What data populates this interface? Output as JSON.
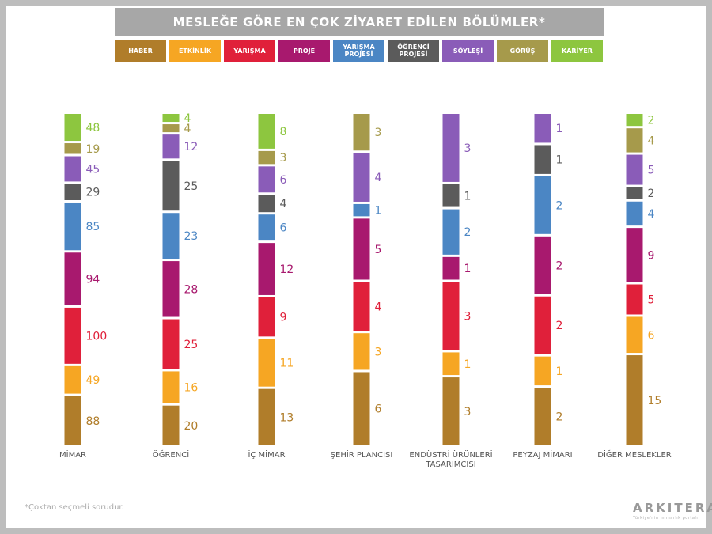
{
  "title": "MESLEĞE GÖRE EN ÇOK ZİYARET EDİLEN BÖLÜMLER*",
  "footnote": "*Çoktan seçmeli sorudur.",
  "logo": {
    "word": "ARKITERA",
    "tagline": "Türkiye'nin mimarlık portalı"
  },
  "colors": {
    "frame": "#bdbdbd",
    "title_bg": "#a7a7a7"
  },
  "chart_data": {
    "type": "bar",
    "stacked": true,
    "categories": [
      "MİMAR",
      "ÖĞRENCİ",
      "İÇ MİMAR",
      "ŞEHİR PLANCISI",
      "ENDÜSTRİ ÜRÜNLERİ\nTASARIMCISI",
      "PEYZAJ MİMARI",
      "DİĞER MESLEKLER"
    ],
    "series": [
      {
        "name": "HABER",
        "color": "#b07d2a",
        "values": [
          88,
          20,
          13,
          6,
          3,
          2,
          15
        ]
      },
      {
        "name": "ETKİNLİK",
        "color": "#f6a623",
        "values": [
          49,
          16,
          11,
          3,
          1,
          1,
          6
        ]
      },
      {
        "name": "YARIŞMA",
        "color": "#e0203a",
        "values": [
          100,
          25,
          9,
          4,
          3,
          2,
          5
        ]
      },
      {
        "name": "PROJE",
        "color": "#a8196e",
        "values": [
          94,
          28,
          12,
          5,
          1,
          2,
          9
        ]
      },
      {
        "name": "YARIŞMA PROJESİ",
        "color": "#4b86c4",
        "values": [
          85,
          23,
          6,
          1,
          2,
          2,
          4
        ]
      },
      {
        "name": "ÖĞRENCİ PROJESİ",
        "color": "#5b5b5b",
        "values": [
          29,
          25,
          4,
          0,
          1,
          1,
          2
        ]
      },
      {
        "name": "SÖYLEŞİ",
        "color": "#8a5cb8",
        "values": [
          45,
          12,
          6,
          4,
          3,
          1,
          5
        ]
      },
      {
        "name": "GÖRÜŞ",
        "color": "#a69a4b",
        "values": [
          19,
          4,
          3,
          3,
          0,
          0,
          4
        ]
      },
      {
        "name": "KARİYER",
        "color": "#8dc63f",
        "values": [
          48,
          4,
          8,
          0,
          0,
          0,
          2
        ]
      }
    ]
  }
}
